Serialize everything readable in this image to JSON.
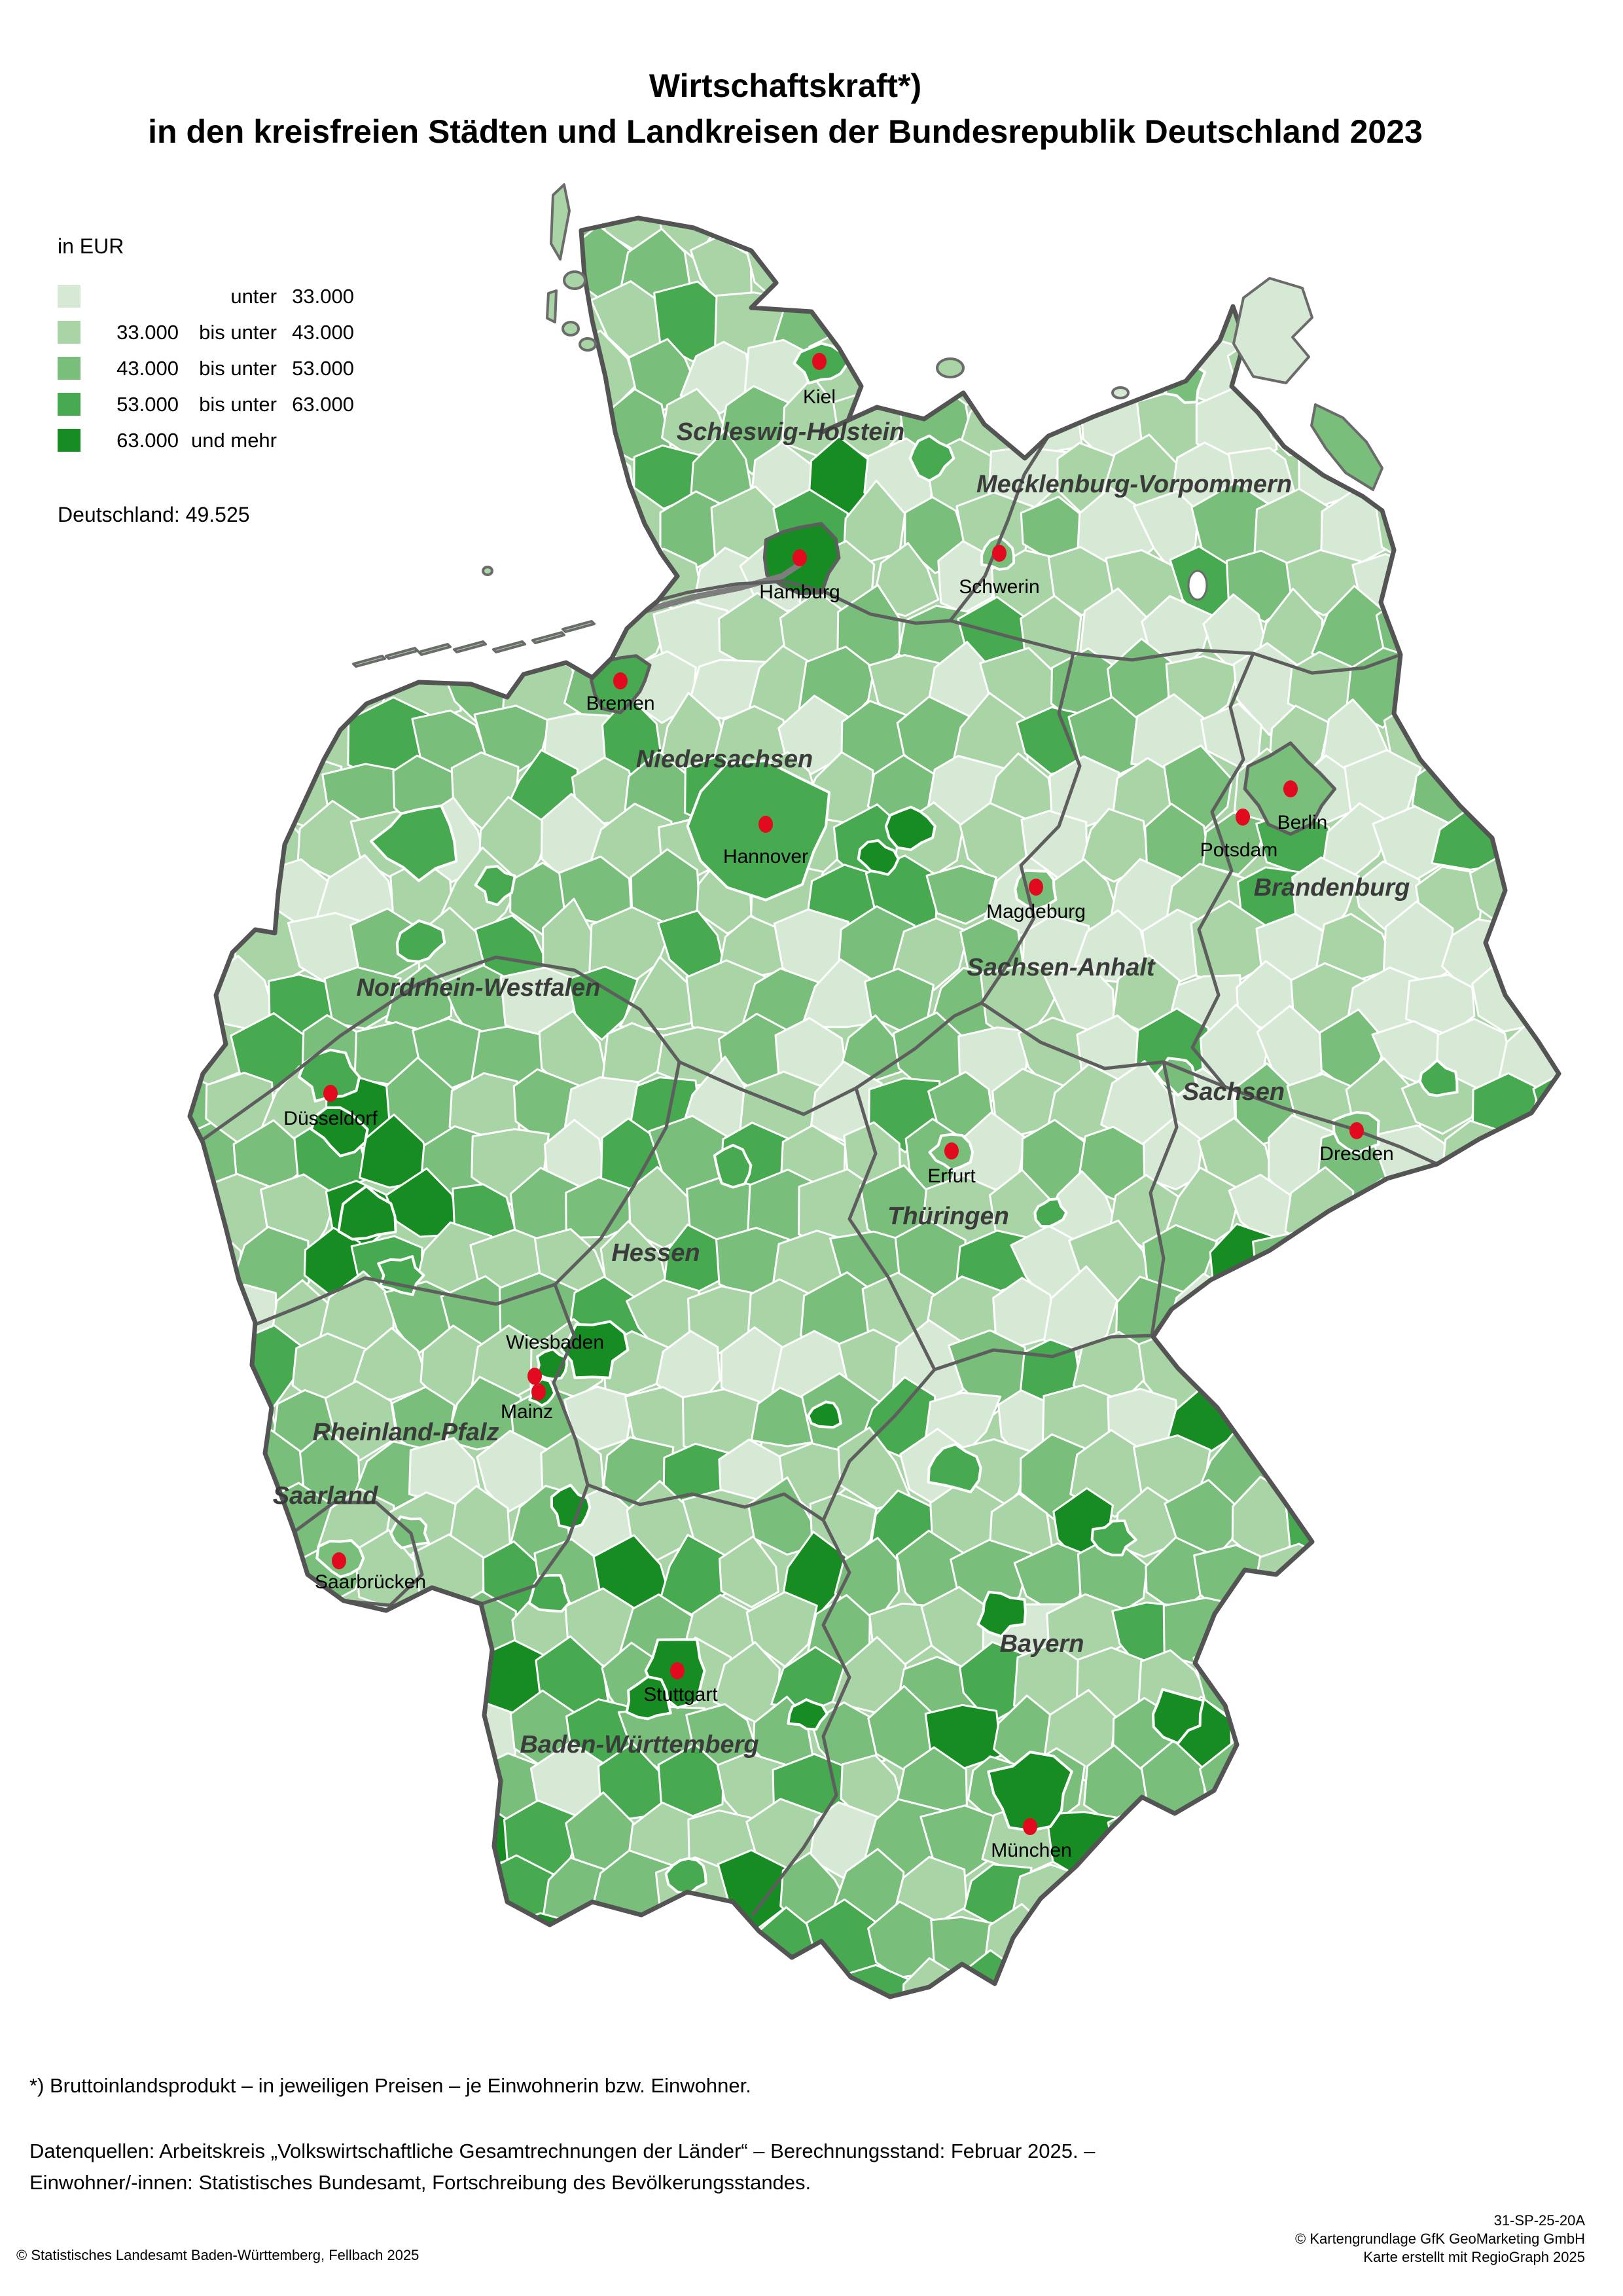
{
  "title": {
    "line1": "Wirtschaftskraft*)",
    "line2": "in den kreisfreien Städten und Landkreisen der Bundesrepublik Deutschland 2023"
  },
  "legend": {
    "unit_label": "in EUR",
    "classes": [
      {
        "lower": "",
        "relation": "unter",
        "upper": "33.000",
        "color": "#d6e9d4"
      },
      {
        "lower": "33.000",
        "relation": "bis unter",
        "upper": "43.000",
        "color": "#a9d4a6"
      },
      {
        "lower": "43.000",
        "relation": "bis unter",
        "upper": "53.000",
        "color": "#79bf7b"
      },
      {
        "lower": "53.000",
        "relation": "bis unter",
        "upper": "63.000",
        "color": "#47a950"
      },
      {
        "lower": "63.000",
        "relation": "und mehr",
        "upper": "",
        "color": "#178c22"
      }
    ],
    "national_value_label": "Deutschland: 49.525"
  },
  "map": {
    "marker_color": "#e20a1e",
    "state_labels": [
      "Schleswig-Holstein",
      "Mecklenburg-Vorpommern",
      "Niedersachsen",
      "Brandenburg",
      "Sachsen-Anhalt",
      "Nordrhein-Westfalen",
      "Sachsen",
      "Thüringen",
      "Hessen",
      "Rheinland-Pfalz",
      "Saarland",
      "Bayern",
      "Baden-Württemberg"
    ],
    "cities": [
      "Kiel",
      "Schwerin",
      "Hamburg",
      "Bremen",
      "Hannover",
      "Berlin",
      "Potsdam",
      "Magdeburg",
      "Düsseldorf",
      "Erfurt",
      "Dresden",
      "Wiesbaden",
      "Mainz",
      "Saarbrücken",
      "Stuttgart",
      "München"
    ]
  },
  "footnotes": {
    "definition": "*) Bruttoinlandsprodukt – in jeweiligen Preisen – je Einwohnerin bzw. Einwohner.",
    "source_line1": "Datenquellen: Arbeitskreis  „Volkswirtschaftliche Gesamtrechnungen der Länder“ – Berechnungsstand: Februar 2025. –",
    "source_line2": "Einwohner/-innen: Statistisches Bundesamt, Fortschreibung des Bevölkerungsstandes."
  },
  "credits": {
    "publisher": "© Statistisches Landesamt Baden-Württemberg, Fellbach 2025",
    "map_code": "31-SP-25-20A",
    "base_map": "© Kartengrundlage GfK GeoMarketing GmbH",
    "tool": "Karte erstellt mit RegioGraph 2025"
  }
}
